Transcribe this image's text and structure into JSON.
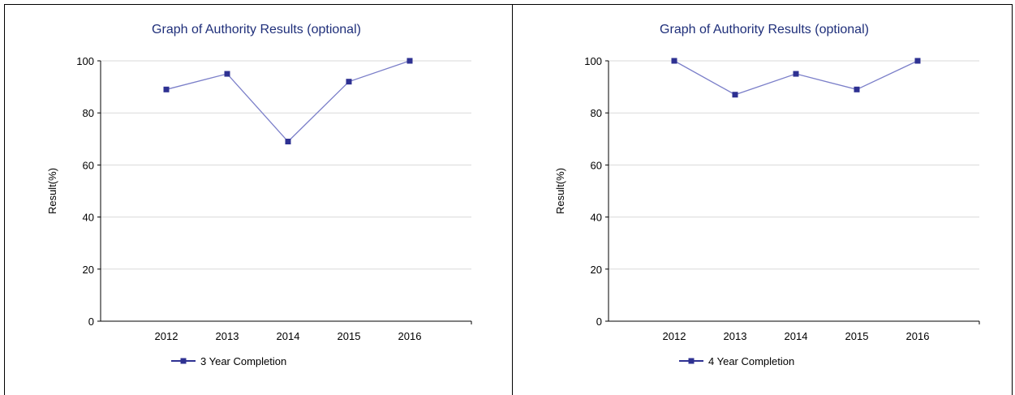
{
  "chart_data": [
    {
      "type": "line",
      "title": "Graph of Authority Results (optional)",
      "xlabel": "",
      "ylabel": "Result(%)",
      "categories": [
        "2012",
        "2013",
        "2014",
        "2015",
        "2016"
      ],
      "ylim": [
        0,
        100
      ],
      "yticks": [
        "0",
        "20",
        "40",
        "60",
        "80",
        "100"
      ],
      "grid": true,
      "legend_position": "bottom",
      "series": [
        {
          "name": "3 Year Completion",
          "color": "#2e3192",
          "values": [
            89,
            95,
            69,
            92,
            100
          ]
        }
      ]
    },
    {
      "type": "line",
      "title": "Graph of Authority Results (optional)",
      "xlabel": "",
      "ylabel": "Result(%)",
      "categories": [
        "2012",
        "2013",
        "2014",
        "2015",
        "2016"
      ],
      "ylim": [
        0,
        100
      ],
      "yticks": [
        "0",
        "20",
        "40",
        "60",
        "80",
        "100"
      ],
      "grid": true,
      "legend_position": "bottom",
      "series": [
        {
          "name": "4 Year Completion",
          "color": "#2e3192",
          "values": [
            100,
            87,
            95,
            89,
            100
          ]
        }
      ]
    }
  ]
}
